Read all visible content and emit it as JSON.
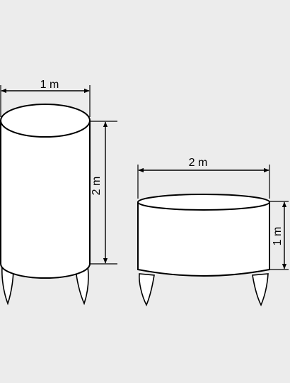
{
  "diagram": {
    "left_tank": {
      "diameter_label": "1 m",
      "height_label": "2 m"
    },
    "right_tank": {
      "diameter_label": "2 m",
      "height_label": "1 m"
    },
    "colors": {
      "background": "#ececec",
      "tank_fill": "#ffffff",
      "stroke": "#000000"
    }
  }
}
